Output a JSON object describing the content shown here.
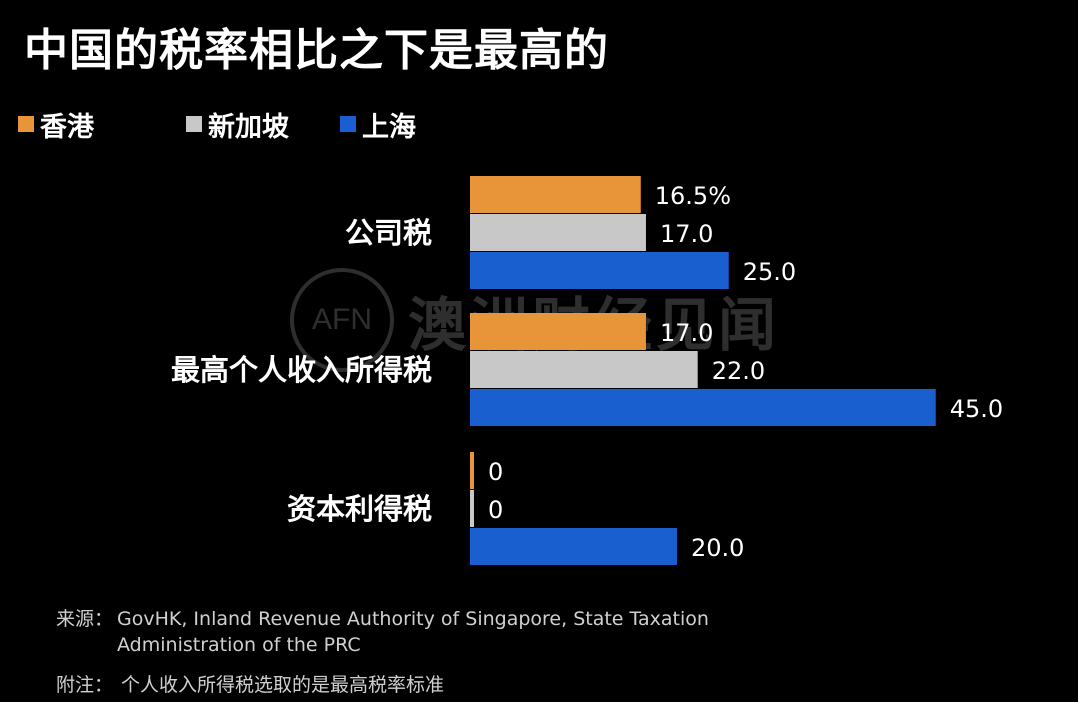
{
  "title": "中国的税率相比之下是最高的",
  "legend": [
    {
      "label": "香港",
      "color": "#e8953a"
    },
    {
      "label": "新加坡",
      "color": "#c8c8c8"
    },
    {
      "label": "上海",
      "color": "#1a5fd0"
    }
  ],
  "chart_data": {
    "type": "bar",
    "orientation": "horizontal",
    "categories": [
      "公司税",
      "最高个人收入所得税",
      "资本利得税"
    ],
    "series": [
      {
        "name": "香港",
        "color": "#e8953a",
        "values": [
          16.5,
          17.0,
          0
        ],
        "labels": [
          "16.5%",
          "17.0",
          "0"
        ]
      },
      {
        "name": "新加坡",
        "color": "#c8c8c8",
        "values": [
          17.0,
          22.0,
          0
        ],
        "labels": [
          "17.0",
          "22.0",
          "0"
        ]
      },
      {
        "name": "上海",
        "color": "#1a5fd0",
        "values": [
          25.0,
          45.0,
          20.0
        ],
        "labels": [
          "25.0",
          "45.0",
          "20.0"
        ]
      }
    ],
    "xlim": [
      0,
      45
    ],
    "grid": false,
    "legend_position": "top-left"
  },
  "footer": {
    "source_label": "来源：",
    "source_text": "GovHK, Inland Revenue Authority of Singapore, State Taxation Administration of the PRC",
    "note_label": "附注：",
    "note_text": "个人收入所得税选取的是最高税率标准"
  },
  "watermark": {
    "logo_text": "AFN",
    "text": "澳洲财经见闻"
  }
}
